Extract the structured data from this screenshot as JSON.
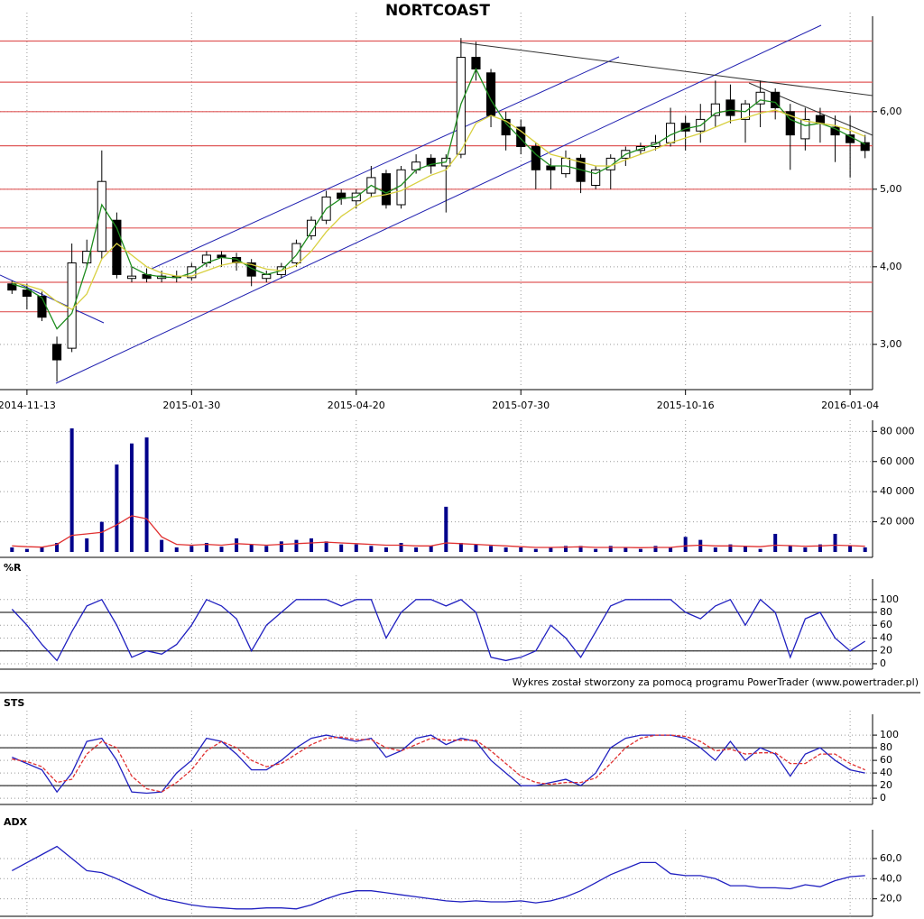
{
  "chart_data": [
    {
      "type": "candlestick",
      "title": "NORTCOAST",
      "categories": [
        null,
        "2014-11-13",
        null,
        null,
        null,
        null,
        null,
        null,
        null,
        null,
        null,
        null,
        "2015-01-30",
        null,
        null,
        null,
        null,
        null,
        null,
        null,
        null,
        null,
        null,
        "2015-04-20",
        null,
        null,
        null,
        null,
        null,
        null,
        null,
        null,
        null,
        null,
        "2015-07-30",
        null,
        null,
        null,
        null,
        null,
        null,
        null,
        null,
        null,
        null,
        "2015-10-16",
        null,
        null,
        null,
        null,
        null,
        null,
        null,
        null,
        null,
        null,
        "2016-01-04",
        null
      ],
      "open": [
        3.78,
        3.7,
        3.62,
        3.0,
        2.95,
        4.05,
        4.2,
        4.6,
        3.85,
        3.9,
        3.85,
        3.88,
        3.86,
        4.05,
        4.15,
        4.12,
        4.05,
        3.85,
        3.9,
        4.05,
        4.4,
        4.6,
        4.95,
        4.85,
        4.95,
        5.2,
        4.8,
        5.25,
        5.4,
        5.3,
        5.45,
        6.7,
        6.5,
        5.9,
        5.8,
        5.55,
        5.3,
        5.2,
        5.4,
        5.05,
        5.25,
        5.4,
        5.5,
        5.55,
        5.6,
        5.85,
        5.75,
        5.95,
        6.15,
        5.9,
        6.1,
        6.25,
        6.0,
        5.65,
        5.95,
        5.8,
        5.7,
        5.6
      ],
      "high": [
        3.82,
        3.78,
        3.68,
        3.1,
        4.3,
        4.35,
        5.5,
        4.7,
        4.0,
        3.98,
        3.95,
        3.95,
        4.05,
        4.2,
        4.2,
        4.18,
        4.1,
        3.95,
        4.05,
        4.35,
        4.65,
        4.98,
        5.0,
        5.0,
        5.3,
        5.25,
        5.3,
        5.45,
        5.45,
        5.45,
        6.95,
        6.9,
        6.55,
        6.0,
        5.9,
        5.6,
        5.4,
        5.5,
        5.45,
        5.3,
        5.45,
        5.55,
        5.6,
        5.7,
        6.05,
        5.95,
        6.1,
        6.4,
        6.35,
        6.15,
        6.4,
        6.3,
        6.1,
        6.05,
        6.05,
        5.95,
        5.95,
        5.7
      ],
      "low": [
        3.65,
        3.45,
        3.3,
        2.52,
        2.9,
        4.0,
        4.1,
        3.85,
        3.8,
        3.8,
        3.8,
        3.8,
        3.82,
        4.0,
        4.0,
        3.95,
        3.75,
        3.8,
        3.85,
        4.0,
        4.35,
        4.55,
        4.8,
        4.75,
        4.9,
        4.75,
        4.75,
        5.2,
        5.2,
        4.7,
        5.4,
        6.4,
        5.8,
        5.5,
        5.45,
        5.0,
        5.0,
        5.15,
        4.95,
        5.0,
        5.0,
        5.3,
        5.45,
        5.5,
        5.55,
        5.5,
        5.6,
        5.8,
        5.85,
        5.6,
        5.8,
        5.9,
        5.25,
        5.5,
        5.6,
        5.35,
        5.15,
        5.4
      ],
      "close": [
        3.7,
        3.62,
        3.35,
        2.8,
        4.05,
        4.2,
        5.1,
        3.9,
        3.88,
        3.85,
        3.88,
        3.86,
        4.0,
        4.15,
        4.12,
        4.05,
        3.88,
        3.9,
        4.0,
        4.3,
        4.6,
        4.9,
        4.88,
        4.95,
        5.15,
        4.8,
        5.25,
        5.35,
        5.3,
        5.4,
        6.7,
        6.55,
        5.95,
        5.7,
        5.55,
        5.25,
        5.25,
        5.4,
        5.1,
        5.25,
        5.4,
        5.5,
        5.55,
        5.6,
        5.85,
        5.75,
        5.9,
        6.1,
        5.95,
        6.1,
        6.25,
        6.05,
        5.7,
        5.9,
        5.85,
        5.7,
        5.6,
        5.5
      ],
      "lines": [
        {
          "color": "#1e8c1e",
          "values": [
            3.78,
            3.72,
            3.6,
            3.2,
            3.4,
            4.0,
            4.8,
            4.5,
            4.0,
            3.9,
            3.87,
            3.86,
            3.92,
            4.05,
            4.12,
            4.1,
            3.98,
            3.9,
            3.95,
            4.15,
            4.45,
            4.75,
            4.88,
            4.9,
            5.05,
            4.95,
            5.05,
            5.25,
            5.32,
            5.35,
            6.1,
            6.55,
            6.15,
            5.85,
            5.65,
            5.45,
            5.3,
            5.3,
            5.25,
            5.2,
            5.3,
            5.45,
            5.52,
            5.58,
            5.7,
            5.78,
            5.82,
            5.98,
            6.02,
            6.0,
            6.15,
            6.12,
            5.9,
            5.82,
            5.85,
            5.78,
            5.68,
            5.58
          ]
        },
        {
          "color": "#d8d040",
          "values": [
            3.8,
            3.76,
            3.7,
            3.55,
            3.45,
            3.65,
            4.1,
            4.3,
            4.15,
            4.0,
            3.92,
            3.88,
            3.88,
            3.95,
            4.02,
            4.06,
            4.03,
            3.97,
            3.95,
            4.02,
            4.2,
            4.45,
            4.65,
            4.78,
            4.9,
            4.93,
            4.98,
            5.08,
            5.18,
            5.25,
            5.5,
            5.85,
            5.95,
            5.88,
            5.75,
            5.6,
            5.45,
            5.4,
            5.35,
            5.3,
            5.3,
            5.38,
            5.45,
            5.52,
            5.6,
            5.66,
            5.72,
            5.8,
            5.88,
            5.92,
            5.98,
            6.02,
            5.95,
            5.88,
            5.85,
            5.82,
            5.76,
            5.68
          ]
        }
      ],
      "levels": [
        6.91,
        6.38,
        6.0,
        5.56,
        5.0,
        4.5,
        4.2,
        3.8,
        3.42
      ],
      "level_color": "#e05a5a",
      "ylim": [
        2.44,
        7.23
      ],
      "yticks": [
        {
          "value": 3,
          "label": "3,00"
        },
        {
          "value": 4,
          "label": "4,00"
        },
        {
          "value": 5,
          "label": "5,00"
        },
        {
          "value": 6,
          "label": "6,00"
        }
      ],
      "grid": true
    },
    {
      "type": "bar",
      "color": "#00008b",
      "values": [
        3000,
        2000,
        3500,
        6000,
        82000,
        9000,
        20000,
        58000,
        72000,
        76000,
        8000,
        3000,
        4000,
        6000,
        3500,
        9000,
        5000,
        4000,
        7000,
        8000,
        9000,
        7000,
        5000,
        5000,
        4000,
        3000,
        6000,
        3000,
        4000,
        30000,
        6000,
        5000,
        4000,
        3000,
        3000,
        2000,
        3000,
        4000,
        4000,
        2000,
        4000,
        3000,
        2000,
        4000,
        3000,
        10000,
        8000,
        3000,
        5000,
        4000,
        2000,
        12000,
        4000,
        3000,
        5000,
        12000,
        4000,
        3000
      ],
      "lines": [
        {
          "color": "#e03030",
          "values": [
            4000,
            3500,
            3200,
            5000,
            11000,
            12000,
            13000,
            18000,
            24000,
            22000,
            10000,
            5000,
            4500,
            5000,
            4500,
            5500,
            5000,
            4500,
            5000,
            5500,
            6000,
            6500,
            6000,
            5500,
            5000,
            4500,
            4500,
            4000,
            4000,
            6000,
            5500,
            5000,
            4500,
            4000,
            3500,
            3000,
            3000,
            3200,
            3400,
            3000,
            3000,
            3000,
            2800,
            3000,
            3000,
            4000,
            4500,
            4000,
            4000,
            3800,
            3500,
            4500,
            4200,
            3800,
            4000,
            4500,
            4200,
            3800
          ]
        }
      ],
      "ylim": [
        0,
        85000
      ],
      "yticks": [
        {
          "value": 20000,
          "label": "20 000"
        },
        {
          "value": 40000,
          "label": "40 000"
        },
        {
          "value": 60000,
          "label": "60 000"
        },
        {
          "value": 80000,
          "label": "80 000"
        }
      ],
      "grid": true
    },
    {
      "type": "line",
      "title": "%R",
      "lines": [
        {
          "color": "#2020c0",
          "values": [
            85,
            60,
            30,
            5,
            50,
            90,
            100,
            60,
            10,
            20,
            15,
            30,
            60,
            100,
            90,
            70,
            20,
            60,
            80,
            100,
            100,
            100,
            90,
            100,
            100,
            40,
            80,
            100,
            100,
            90,
            100,
            80,
            10,
            5,
            10,
            20,
            60,
            40,
            10,
            50,
            90,
            100,
            100,
            100,
            100,
            80,
            70,
            90,
            100,
            60,
            100,
            80,
            10,
            70,
            80,
            40,
            20,
            35
          ]
        }
      ],
      "levels": [
        20,
        80
      ],
      "level_color": "#333333",
      "ylim": [
        -8.5,
        132
      ],
      "yticks": [
        0,
        20,
        40,
        60,
        80,
        100
      ],
      "grid": true
    },
    {
      "type": "line",
      "title": "STS",
      "lines": [
        {
          "color": "#2020c0",
          "values": [
            65,
            55,
            45,
            10,
            40,
            90,
            95,
            60,
            10,
            8,
            10,
            40,
            60,
            95,
            90,
            70,
            45,
            45,
            60,
            80,
            95,
            100,
            95,
            90,
            95,
            65,
            75,
            95,
            100,
            85,
            95,
            90,
            60,
            40,
            20,
            20,
            25,
            30,
            20,
            40,
            80,
            95,
            100,
            100,
            100,
            95,
            80,
            60,
            90,
            60,
            80,
            70,
            35,
            70,
            80,
            60,
            45,
            40
          ]
        },
        {
          "color": "#e03030",
          "dashed": true,
          "values": [
            62,
            58,
            50,
            25,
            30,
            70,
            90,
            80,
            35,
            15,
            10,
            25,
            45,
            75,
            90,
            80,
            60,
            50,
            55,
            70,
            85,
            95,
            97,
            93,
            93,
            80,
            75,
            85,
            95,
            92,
            92,
            92,
            75,
            55,
            35,
            25,
            22,
            25,
            25,
            32,
            55,
            80,
            95,
            100,
            100,
            98,
            90,
            75,
            78,
            70,
            72,
            72,
            55,
            55,
            70,
            70,
            55,
            45
          ]
        }
      ],
      "levels": [
        20,
        80
      ],
      "level_color": "#333333",
      "ylim": [
        -7,
        133
      ],
      "yticks": [
        0,
        20,
        40,
        60,
        80,
        100
      ],
      "grid": true
    },
    {
      "type": "line",
      "title": "ADX",
      "lines": [
        {
          "color": "#2020c0",
          "values": [
            48,
            56,
            64,
            72,
            60,
            48,
            46,
            40,
            33,
            26,
            20,
            17,
            14,
            12,
            11,
            10,
            10,
            11,
            11,
            10,
            14,
            20,
            25,
            28,
            28,
            26,
            24,
            22,
            20,
            18,
            17,
            18,
            17,
            17,
            18,
            16,
            18,
            22,
            28,
            36,
            44,
            50,
            56,
            56,
            45,
            43,
            43,
            40,
            33,
            33,
            31,
            31,
            30,
            34,
            32,
            38,
            42,
            43
          ]
        }
      ],
      "ylim": [
        0,
        85
      ],
      "yticks": [
        {
          "value": 20,
          "label": "20,0"
        },
        {
          "value": 40,
          "label": "40,0"
        },
        {
          "value": 60,
          "label": "60,0"
        }
      ],
      "grid": true
    }
  ],
  "footer": "Wykres został stworzony za pomocą programu PowerTrader (www.powertrader.pl)"
}
